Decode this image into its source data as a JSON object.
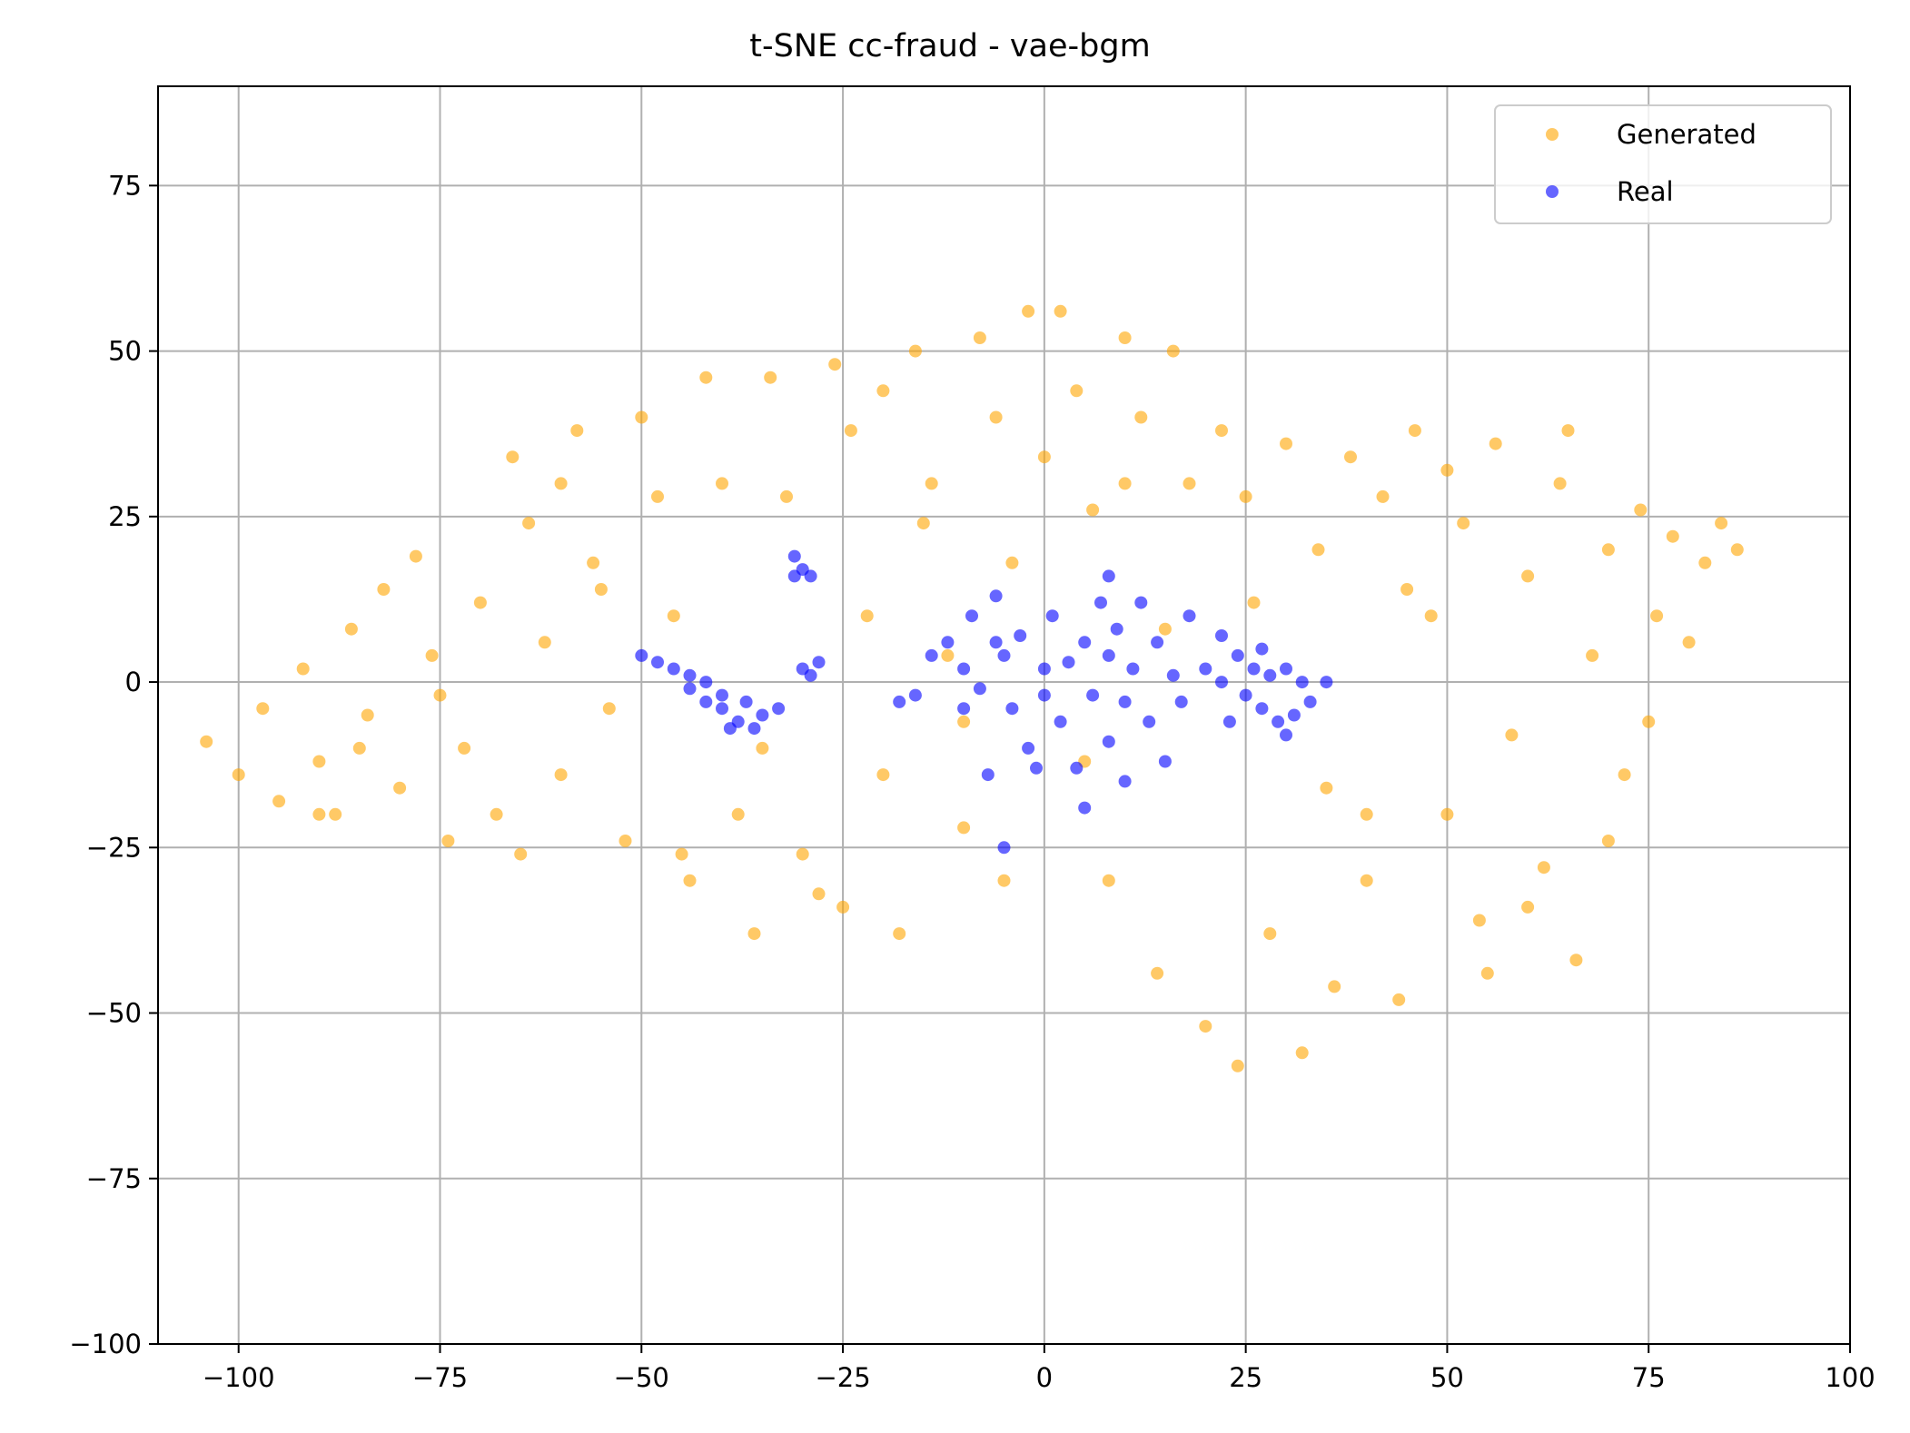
{
  "chart_data": {
    "type": "scatter",
    "title": "t-SNE cc-fraud - vae-bgm",
    "xlabel": "",
    "ylabel": "",
    "xlim": [
      -110,
      100
    ],
    "ylim": [
      -100,
      90
    ],
    "xticks": [
      -100,
      -75,
      -50,
      -25,
      0,
      25,
      50,
      75,
      100
    ],
    "yticks": [
      -100,
      -75,
      -50,
      -25,
      0,
      25,
      50,
      75
    ],
    "xtick_labels": [
      "−100",
      "−75",
      "−50",
      "−25",
      "0",
      "25",
      "50",
      "75",
      "100"
    ],
    "ytick_labels": [
      "−100",
      "−75",
      "−50",
      "−25",
      "0",
      "25",
      "50",
      "75"
    ],
    "grid": true,
    "legend_position": "top-right",
    "series": [
      {
        "name": "Generated",
        "color": "#FFA500",
        "alpha": 0.6,
        "points": [
          [
            -104,
            -9
          ],
          [
            -100,
            -14
          ],
          [
            -97,
            -4
          ],
          [
            -95,
            -18
          ],
          [
            -92,
            2
          ],
          [
            -90,
            -12
          ],
          [
            -88,
            -20
          ],
          [
            -86,
            8
          ],
          [
            -84,
            -5
          ],
          [
            -82,
            14
          ],
          [
            -80,
            -16
          ],
          [
            -78,
            19
          ],
          [
            -76,
            4
          ],
          [
            -74,
            -24
          ],
          [
            -72,
            -10
          ],
          [
            -70,
            12
          ],
          [
            -68,
            -20
          ],
          [
            -66,
            34
          ],
          [
            -64,
            24
          ],
          [
            -62,
            6
          ],
          [
            -60,
            -14
          ],
          [
            -58,
            38
          ],
          [
            -56,
            18
          ],
          [
            -54,
            -4
          ],
          [
            -52,
            -24
          ],
          [
            -50,
            40
          ],
          [
            -48,
            28
          ],
          [
            -46,
            10
          ],
          [
            -44,
            -30
          ],
          [
            -42,
            46
          ],
          [
            -40,
            30
          ],
          [
            -38,
            -20
          ],
          [
            -36,
            -38
          ],
          [
            -34,
            46
          ],
          [
            -32,
            28
          ],
          [
            -30,
            -26
          ],
          [
            -28,
            -32
          ],
          [
            -26,
            48
          ],
          [
            -24,
            38
          ],
          [
            -22,
            10
          ],
          [
            -20,
            -14
          ],
          [
            -18,
            -38
          ],
          [
            -16,
            50
          ],
          [
            -14,
            30
          ],
          [
            -12,
            4
          ],
          [
            -10,
            -22
          ],
          [
            -8,
            52
          ],
          [
            -6,
            40
          ],
          [
            -4,
            18
          ],
          [
            -2,
            56
          ],
          [
            0,
            34
          ],
          [
            2,
            56
          ],
          [
            4,
            44
          ],
          [
            6,
            26
          ],
          [
            8,
            -30
          ],
          [
            10,
            52
          ],
          [
            12,
            40
          ],
          [
            14,
            -44
          ],
          [
            16,
            50
          ],
          [
            18,
            30
          ],
          [
            20,
            -52
          ],
          [
            22,
            38
          ],
          [
            24,
            -58
          ],
          [
            26,
            12
          ],
          [
            28,
            -38
          ],
          [
            30,
            36
          ],
          [
            32,
            -56
          ],
          [
            34,
            20
          ],
          [
            36,
            -46
          ],
          [
            38,
            34
          ],
          [
            40,
            -30
          ],
          [
            42,
            28
          ],
          [
            44,
            -48
          ],
          [
            46,
            38
          ],
          [
            48,
            10
          ],
          [
            50,
            -20
          ],
          [
            52,
            24
          ],
          [
            54,
            -36
          ],
          [
            56,
            36
          ],
          [
            58,
            -8
          ],
          [
            60,
            16
          ],
          [
            62,
            -28
          ],
          [
            64,
            30
          ],
          [
            66,
            -42
          ],
          [
            68,
            4
          ],
          [
            70,
            20
          ],
          [
            72,
            -14
          ],
          [
            74,
            26
          ],
          [
            76,
            10
          ],
          [
            78,
            22
          ],
          [
            80,
            6
          ],
          [
            82,
            18
          ],
          [
            84,
            24
          ],
          [
            86,
            20
          ],
          [
            -60,
            30
          ],
          [
            -45,
            -26
          ],
          [
            -20,
            44
          ],
          [
            -10,
            -6
          ],
          [
            5,
            -12
          ],
          [
            15,
            8
          ],
          [
            35,
            -16
          ],
          [
            45,
            14
          ],
          [
            55,
            -44
          ],
          [
            65,
            38
          ],
          [
            75,
            -6
          ],
          [
            -85,
            -10
          ],
          [
            -75,
            -2
          ],
          [
            -65,
            -26
          ],
          [
            -55,
            14
          ],
          [
            -35,
            -10
          ],
          [
            -25,
            -34
          ],
          [
            -15,
            24
          ],
          [
            -5,
            -30
          ],
          [
            10,
            30
          ],
          [
            25,
            28
          ],
          [
            40,
            -20
          ],
          [
            50,
            32
          ],
          [
            60,
            -34
          ],
          [
            70,
            -24
          ],
          [
            -90,
            -20
          ]
        ]
      },
      {
        "name": "Real",
        "color": "#0000FF",
        "alpha": 0.6,
        "points": [
          [
            -50,
            4
          ],
          [
            -48,
            3
          ],
          [
            -46,
            2
          ],
          [
            -44,
            -1
          ],
          [
            -42,
            -3
          ],
          [
            -40,
            -4
          ],
          [
            -38,
            -6
          ],
          [
            -36,
            -7
          ],
          [
            -44,
            1
          ],
          [
            -42,
            0
          ],
          [
            -40,
            -2
          ],
          [
            -37,
            -3
          ],
          [
            -35,
            -5
          ],
          [
            -33,
            -4
          ],
          [
            -39,
            -7
          ],
          [
            -31,
            19
          ],
          [
            -30,
            17
          ],
          [
            -29,
            16
          ],
          [
            -31,
            16
          ],
          [
            -30,
            2
          ],
          [
            -29,
            1
          ],
          [
            -28,
            3
          ],
          [
            -18,
            -3
          ],
          [
            -16,
            -2
          ],
          [
            -14,
            4
          ],
          [
            -12,
            6
          ],
          [
            -10,
            2
          ],
          [
            -9,
            10
          ],
          [
            -8,
            -1
          ],
          [
            -7,
            -14
          ],
          [
            -6,
            13
          ],
          [
            -5,
            4
          ],
          [
            -5,
            -25
          ],
          [
            -4,
            -4
          ],
          [
            -3,
            7
          ],
          [
            -2,
            -10
          ],
          [
            -1,
            -13
          ],
          [
            0,
            2
          ],
          [
            0,
            -2
          ],
          [
            1,
            10
          ],
          [
            2,
            -6
          ],
          [
            3,
            3
          ],
          [
            4,
            -13
          ],
          [
            5,
            -19
          ],
          [
            5,
            6
          ],
          [
            6,
            -2
          ],
          [
            7,
            12
          ],
          [
            8,
            4
          ],
          [
            8,
            -9
          ],
          [
            9,
            8
          ],
          [
            10,
            -3
          ],
          [
            10,
            -15
          ],
          [
            11,
            2
          ],
          [
            12,
            12
          ],
          [
            13,
            -6
          ],
          [
            14,
            6
          ],
          [
            16,
            1
          ],
          [
            17,
            -3
          ],
          [
            18,
            10
          ],
          [
            20,
            2
          ],
          [
            22,
            0
          ],
          [
            23,
            -6
          ],
          [
            24,
            4
          ],
          [
            25,
            -2
          ],
          [
            26,
            2
          ],
          [
            27,
            -4
          ],
          [
            28,
            1
          ],
          [
            29,
            -6
          ],
          [
            30,
            2
          ],
          [
            31,
            -5
          ],
          [
            32,
            0
          ],
          [
            33,
            -3
          ],
          [
            35,
            0
          ],
          [
            30,
            -8
          ],
          [
            27,
            5
          ],
          [
            -10,
            -4
          ],
          [
            -6,
            6
          ],
          [
            8,
            16
          ],
          [
            15,
            -12
          ],
          [
            22,
            7
          ]
        ]
      }
    ]
  }
}
